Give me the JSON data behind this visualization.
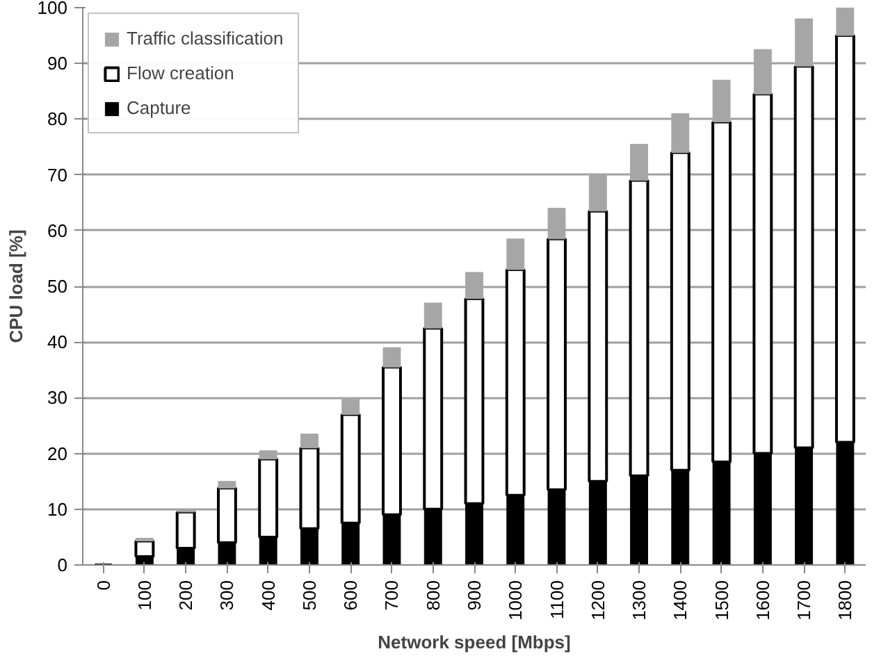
{
  "chart_data": {
    "type": "bar",
    "stacked": true,
    "xlabel": "Network speed [Mbps]",
    "ylabel": "CPU load [%]",
    "categories": [
      "0",
      "100",
      "200",
      "300",
      "400",
      "500",
      "600",
      "700",
      "800",
      "900",
      "1000",
      "1100",
      "1200",
      "1300",
      "1400",
      "1500",
      "1600",
      "1700",
      "1800"
    ],
    "series": [
      {
        "name": "Capture",
        "color": "#000000",
        "values": [
          0,
          1.5,
          3,
          4,
          5,
          6.5,
          7.5,
          9,
          10,
          11,
          12.5,
          13.5,
          15,
          16,
          17,
          18.5,
          20,
          21,
          22
        ]
      },
      {
        "name": "Flow creation",
        "color": "#ffffff",
        "values": [
          0,
          2.8,
          6.5,
          9.8,
          14,
          14.5,
          19.5,
          26.5,
          32.5,
          36.8,
          40.5,
          45,
          48.5,
          53,
          57,
          61,
          64.5,
          68.5,
          73
        ]
      },
      {
        "name": "Traffic classification",
        "color": "#a6a6a6",
        "values": [
          0,
          0.5,
          0.5,
          1.2,
          1.5,
          2.5,
          3,
          3.5,
          4.5,
          4.7,
          5.5,
          5.5,
          6.5,
          6.5,
          7,
          7.5,
          8,
          8.5,
          5
        ]
      }
    ],
    "ylim": [
      0,
      100
    ],
    "yticks": [
      0,
      10,
      20,
      30,
      40,
      50,
      60,
      70,
      80,
      90,
      100
    ],
    "grid": "y",
    "legend": "top left"
  }
}
